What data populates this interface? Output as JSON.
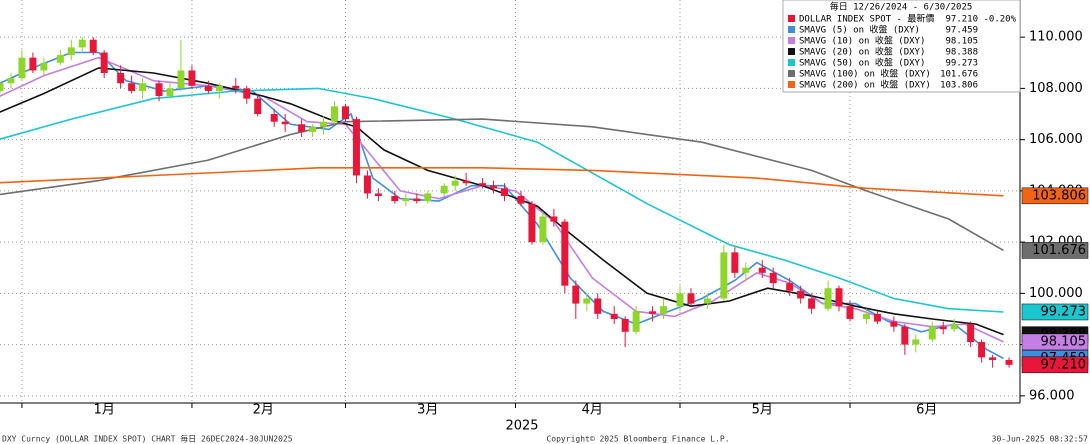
{
  "chart_data": {
    "type": "candlestick",
    "legend_title": "毎日 12/26/2024 - 6/30/2025",
    "x_title": "2025",
    "xlim": [
      2,
      188
    ],
    "xticks": [
      {
        "value": 21,
        "label": "1月"
      },
      {
        "value": 50,
        "label": "2月"
      },
      {
        "value": 80,
        "label": "3月"
      },
      {
        "value": 110,
        "label": "4月"
      },
      {
        "value": 141,
        "label": "5月"
      },
      {
        "value": 171,
        "label": "6月"
      }
    ],
    "xgrid": [
      6,
      37,
      65,
      96,
      126,
      157
    ],
    "ylim": [
      95.72,
      111.45
    ],
    "yticks": [
      {
        "value": 96,
        "label": "96.000"
      },
      {
        "value": 98,
        "label": "98.000"
      },
      {
        "value": 100,
        "label": "100.000"
      },
      {
        "value": 102,
        "label": "102.000"
      },
      {
        "value": 104,
        "label": "104.000"
      },
      {
        "value": 106,
        "label": "106.000"
      },
      {
        "value": 108,
        "label": "108.000"
      },
      {
        "value": 110,
        "label": "110.000"
      }
    ],
    "grid": true,
    "price": {
      "name": "DOLLAR INDEX SPOT - 最新價",
      "color": "#e8173a",
      "color_up": "#8fd62a",
      "color_down": "#e8173a",
      "x": [
        2,
        4,
        6,
        8,
        10,
        13,
        15,
        17,
        19,
        21,
        24,
        26,
        28,
        31,
        33,
        35,
        37,
        40,
        42,
        45,
        47,
        49,
        52,
        54,
        57,
        59,
        61,
        63,
        65,
        67,
        69,
        71,
        74,
        76,
        78,
        80,
        83,
        85,
        87,
        90,
        92,
        94,
        97,
        99,
        101,
        103,
        105,
        107,
        109,
        111,
        114,
        116,
        118,
        121,
        123,
        126,
        128,
        131,
        134,
        136,
        138,
        141,
        143,
        146,
        148,
        150,
        153,
        155,
        157,
        160,
        162,
        165,
        167,
        169,
        172,
        174,
        176,
        179,
        181,
        183,
        186
      ],
      "open": [
        107.9,
        108.2,
        108.4,
        109.2,
        108.7,
        109.0,
        109.3,
        109.6,
        109.9,
        109.4,
        108.6,
        108.2,
        107.9,
        108.2,
        107.7,
        108.0,
        108.7,
        108.1,
        107.9,
        108.1,
        108.0,
        107.6,
        107.0,
        106.7,
        106.6,
        106.3,
        106.5,
        106.7,
        107.3,
        106.8,
        104.6,
        103.9,
        103.8,
        103.6,
        103.7,
        103.6,
        103.9,
        104.2,
        104.4,
        104.3,
        104.2,
        104.1,
        103.8,
        103.5,
        102.0,
        103.0,
        102.8,
        100.3,
        99.6,
        99.8,
        99.2,
        99.0,
        98.5,
        99.3,
        99.2,
        99.5,
        100.0,
        99.6,
        99.8,
        101.6,
        100.8,
        101.0,
        100.8,
        100.4,
        100.1,
        99.8,
        99.4,
        100.2,
        99.5,
        99.0,
        99.2,
        98.9,
        98.7,
        98.0,
        98.2,
        98.7,
        98.6,
        98.8,
        98.1,
        97.5,
        97.4
      ],
      "high": [
        108.3,
        108.6,
        109.5,
        109.4,
        109.2,
        109.5,
        109.9,
        110.0,
        110.0,
        109.5,
        108.9,
        108.5,
        108.4,
        108.3,
        108.2,
        109.9,
        108.9,
        108.3,
        108.2,
        108.4,
        108.1,
        107.8,
        107.2,
        107.0,
        106.8,
        106.6,
        106.9,
        107.5,
        107.4,
        106.9,
        104.8,
        104.1,
        104.0,
        103.9,
        103.9,
        104.0,
        104.3,
        104.6,
        104.7,
        104.5,
        104.4,
        104.3,
        104.0,
        103.6,
        103.2,
        103.3,
        102.9,
        100.5,
        100.0,
        100.0,
        99.5,
        99.1,
        99.5,
        99.5,
        99.8,
        100.3,
        100.2,
        100.0,
        101.9,
        101.8,
        101.2,
        101.3,
        101.0,
        100.6,
        100.3,
        100.0,
        100.5,
        100.3,
        99.7,
        99.4,
        99.3,
        99.1,
        98.8,
        98.4,
        98.9,
        98.9,
        99.0,
        98.9,
        98.2,
        97.6,
        97.5
      ],
      "low": [
        107.8,
        108.0,
        108.3,
        108.6,
        108.5,
        108.9,
        109.1,
        109.4,
        109.3,
        108.4,
        108.0,
        107.8,
        107.6,
        107.5,
        107.6,
        107.9,
        108.0,
        107.8,
        107.6,
        107.8,
        107.4,
        106.9,
        106.5,
        106.3,
        106.1,
        106.1,
        106.2,
        106.6,
        106.7,
        104.3,
        103.7,
        103.6,
        103.5,
        103.4,
        103.5,
        103.5,
        103.8,
        104.0,
        104.2,
        104.1,
        103.9,
        103.6,
        103.4,
        101.9,
        101.9,
        102.6,
        100.0,
        99.0,
        99.3,
        99.0,
        98.8,
        97.9,
        98.4,
        98.9,
        99.0,
        99.3,
        99.5,
        99.4,
        99.7,
        100.6,
        100.5,
        100.6,
        100.2,
        99.9,
        99.6,
        99.2,
        99.3,
        99.3,
        98.9,
        98.8,
        98.8,
        98.5,
        97.6,
        97.7,
        98.1,
        98.4,
        98.5,
        97.9,
        97.3,
        97.1,
        97.1
      ],
      "close": [
        108.2,
        108.4,
        109.2,
        108.7,
        109.0,
        109.3,
        109.6,
        109.9,
        109.4,
        108.6,
        108.2,
        107.9,
        108.2,
        107.7,
        108.0,
        108.7,
        108.1,
        107.9,
        108.1,
        108.0,
        107.6,
        107.0,
        106.7,
        106.6,
        106.3,
        106.5,
        106.7,
        107.3,
        106.8,
        104.6,
        103.9,
        103.8,
        103.6,
        103.7,
        103.6,
        103.9,
        104.2,
        104.4,
        104.3,
        104.2,
        104.1,
        103.8,
        103.5,
        102.0,
        103.0,
        102.8,
        100.3,
        99.6,
        99.8,
        99.2,
        99.0,
        98.5,
        99.3,
        99.2,
        99.5,
        100.0,
        99.6,
        99.8,
        101.6,
        100.8,
        101.0,
        100.8,
        100.4,
        100.1,
        99.8,
        99.4,
        100.2,
        99.5,
        99.0,
        99.2,
        98.9,
        98.7,
        98.0,
        98.2,
        98.7,
        98.6,
        98.8,
        98.1,
        97.5,
        97.4,
        97.21
      ],
      "last_value": 97.21,
      "last_label": "97.210",
      "change": -0.2,
      "change_label": "-0.20%"
    },
    "series": [
      {
        "name": "SMAVG (5)  on 收盤 (DXY)",
        "color": "#3d8fe0",
        "last_value": 97.459,
        "last_label": "97.459",
        "x": [
          0,
          8,
          15,
          20,
          25,
          32,
          40,
          48,
          55,
          62,
          66,
          70,
          75,
          82,
          88,
          94,
          100,
          106,
          112,
          118,
          124,
          130,
          136,
          140,
          146,
          152,
          158,
          164,
          170,
          176,
          182,
          185
        ],
        "values": [
          108.0,
          108.8,
          109.4,
          109.4,
          108.3,
          107.9,
          108.1,
          107.9,
          106.6,
          106.4,
          107.0,
          104.5,
          103.7,
          103.6,
          104.2,
          104.2,
          102.7,
          100.6,
          99.3,
          98.8,
          99.3,
          99.8,
          100.5,
          101.2,
          100.5,
          99.6,
          99.6,
          98.9,
          98.5,
          98.8,
          97.8,
          97.459
        ]
      },
      {
        "name": "SMAVG (10)  on 收盤 (DXY)",
        "color": "#c47ee6",
        "last_value": 98.105,
        "last_label": "98.105",
        "x": [
          0,
          10,
          20,
          30,
          40,
          50,
          58,
          65,
          70,
          75,
          82,
          90,
          96,
          103,
          110,
          118,
          125,
          132,
          140,
          146,
          152,
          158,
          165,
          172,
          178,
          185
        ],
        "values": [
          107.5,
          108.5,
          109.2,
          108.3,
          108.1,
          107.7,
          106.7,
          106.6,
          105.3,
          104.0,
          103.7,
          104.2,
          104.0,
          102.8,
          100.6,
          99.3,
          99.1,
          99.7,
          100.8,
          100.4,
          99.6,
          99.4,
          98.9,
          98.7,
          98.8,
          98.105
        ]
      },
      {
        "name": "SMAVG (20)  on 收盤 (DXY)",
        "color": "#111111",
        "last_value": 98.388,
        "last_label": "98.388",
        "x": [
          0,
          10,
          20,
          30,
          40,
          50,
          55,
          62,
          67,
          72,
          80,
          90,
          100,
          105,
          112,
          120,
          128,
          135,
          142,
          150,
          158,
          165,
          172,
          180,
          185
        ],
        "values": [
          106.9,
          107.8,
          108.8,
          108.6,
          108.2,
          107.7,
          107.4,
          106.8,
          106.5,
          105.6,
          104.8,
          104.2,
          103.4,
          102.5,
          101.3,
          100.0,
          99.5,
          99.7,
          100.2,
          99.9,
          99.5,
          99.2,
          99.0,
          98.8,
          98.388
        ]
      },
      {
        "name": "SMAVG (50)  on 收盤 (DXY)",
        "color": "#1cc6cf",
        "last_value": 99.273,
        "last_label": "99.273",
        "x": [
          0,
          15,
          30,
          45,
          60,
          70,
          85,
          100,
          110,
          120,
          135,
          145,
          155,
          165,
          175,
          185
        ],
        "values": [
          105.9,
          106.8,
          107.6,
          107.9,
          108.0,
          107.6,
          106.8,
          105.9,
          104.7,
          103.5,
          101.9,
          101.3,
          100.6,
          99.8,
          99.4,
          99.273
        ]
      },
      {
        "name": "SMAVG (100)  on 收盤 (DXY)",
        "color": "#6e6e6e",
        "last_value": 101.676,
        "last_label": "101.676",
        "x": [
          0,
          20,
          40,
          55,
          65,
          90,
          110,
          130,
          150,
          160,
          175,
          185
        ],
        "values": [
          103.8,
          104.4,
          105.2,
          106.2,
          106.7,
          106.8,
          106.5,
          105.9,
          104.8,
          104.0,
          102.9,
          101.676
        ]
      },
      {
        "name": "SMAVG (200)  on 收盤 (DXY)",
        "color": "#f06414",
        "last_value": 103.806,
        "last_label": "103.806",
        "x": [
          0,
          30,
          60,
          90,
          110,
          140,
          160,
          185
        ],
        "values": [
          104.3,
          104.6,
          104.9,
          104.9,
          104.8,
          104.5,
          104.1,
          103.806
        ]
      }
    ],
    "footer": {
      "left": "DXY Curncy (DOLLAR INDEX SPOT) CHART  毎日 26DEC2024-30JUN2025",
      "center": "Copyright© 2025 Bloomberg Finance L.P.",
      "right": "30-Jun-2025 08:32:57"
    }
  }
}
